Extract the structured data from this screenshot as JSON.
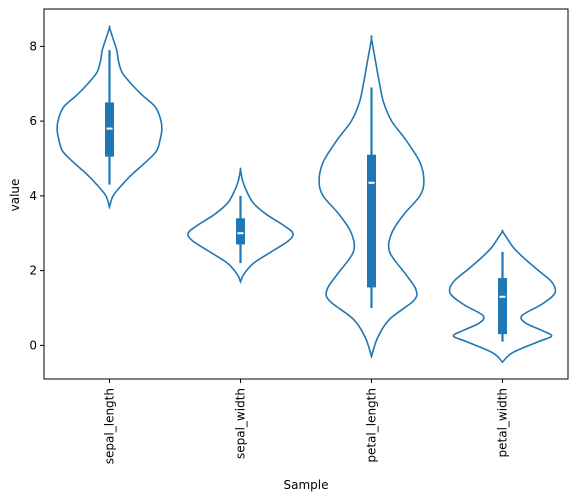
{
  "chart_data": {
    "type": "violin",
    "xlabel": "Sample",
    "ylabel": "value",
    "categories": [
      "sepal_length",
      "sepal_width",
      "petal_length",
      "petal_width"
    ],
    "ylim": [
      -0.9,
      9.0
    ],
    "yticks": [
      0,
      2,
      4,
      6,
      8
    ],
    "color": "#1f77b4",
    "violins": [
      {
        "category": "sepal_length",
        "whisker_low": 4.3,
        "q1": 5.05,
        "median": 5.8,
        "q3": 6.5,
        "whisker_high": 7.9,
        "density_profile": [
          [
            3.7,
            0
          ],
          [
            4.0,
            0.02
          ],
          [
            4.3,
            0.07
          ],
          [
            4.6,
            0.13
          ],
          [
            4.9,
            0.2
          ],
          [
            5.2,
            0.26
          ],
          [
            5.5,
            0.28
          ],
          [
            5.8,
            0.29
          ],
          [
            6.1,
            0.28
          ],
          [
            6.4,
            0.25
          ],
          [
            6.7,
            0.18
          ],
          [
            7.0,
            0.12
          ],
          [
            7.3,
            0.07
          ],
          [
            7.6,
            0.05
          ],
          [
            7.9,
            0.04
          ],
          [
            8.2,
            0.02
          ],
          [
            8.5,
            0
          ]
        ]
      },
      {
        "category": "sepal_width",
        "whisker_low": 2.2,
        "q1": 2.7,
        "median": 3.0,
        "q3": 3.4,
        "whisker_high": 4.0,
        "density_profile": [
          [
            1.7,
            0
          ],
          [
            1.9,
            0.03
          ],
          [
            2.2,
            0.12
          ],
          [
            2.5,
            0.28
          ],
          [
            2.8,
            0.44
          ],
          [
            3.0,
            0.48
          ],
          [
            3.2,
            0.4
          ],
          [
            3.5,
            0.24
          ],
          [
            3.8,
            0.12
          ],
          [
            4.1,
            0.06
          ],
          [
            4.4,
            0.02
          ],
          [
            4.7,
            0
          ]
        ]
      },
      {
        "category": "petal_length",
        "whisker_low": 1.0,
        "q1": 1.55,
        "median": 4.35,
        "q3": 5.1,
        "whisker_high": 6.9,
        "density_profile": [
          [
            -0.3,
            0
          ],
          [
            0.2,
            0.015
          ],
          [
            0.7,
            0.045
          ],
          [
            1.2,
            0.105
          ],
          [
            1.5,
            0.11
          ],
          [
            1.9,
            0.085
          ],
          [
            2.5,
            0.045
          ],
          [
            3.0,
            0.05
          ],
          [
            3.5,
            0.08
          ],
          [
            4.0,
            0.12
          ],
          [
            4.4,
            0.13
          ],
          [
            4.9,
            0.12
          ],
          [
            5.5,
            0.085
          ],
          [
            6.0,
            0.05
          ],
          [
            6.5,
            0.03
          ],
          [
            7.0,
            0.02
          ],
          [
            7.6,
            0.01
          ],
          [
            8.2,
            0
          ]
        ]
      },
      {
        "category": "petal_width",
        "whisker_low": 0.1,
        "q1": 0.3,
        "median": 1.3,
        "q3": 1.8,
        "whisker_high": 2.5,
        "density_profile": [
          [
            -0.45,
            0
          ],
          [
            -0.2,
            0.03
          ],
          [
            0.1,
            0.11
          ],
          [
            0.25,
            0.15
          ],
          [
            0.4,
            0.12
          ],
          [
            0.6,
            0.07
          ],
          [
            0.8,
            0.06
          ],
          [
            1.1,
            0.12
          ],
          [
            1.4,
            0.16
          ],
          [
            1.7,
            0.15
          ],
          [
            2.0,
            0.11
          ],
          [
            2.3,
            0.07
          ],
          [
            2.6,
            0.035
          ],
          [
            2.85,
            0.015
          ],
          [
            3.05,
            0
          ]
        ]
      }
    ]
  }
}
